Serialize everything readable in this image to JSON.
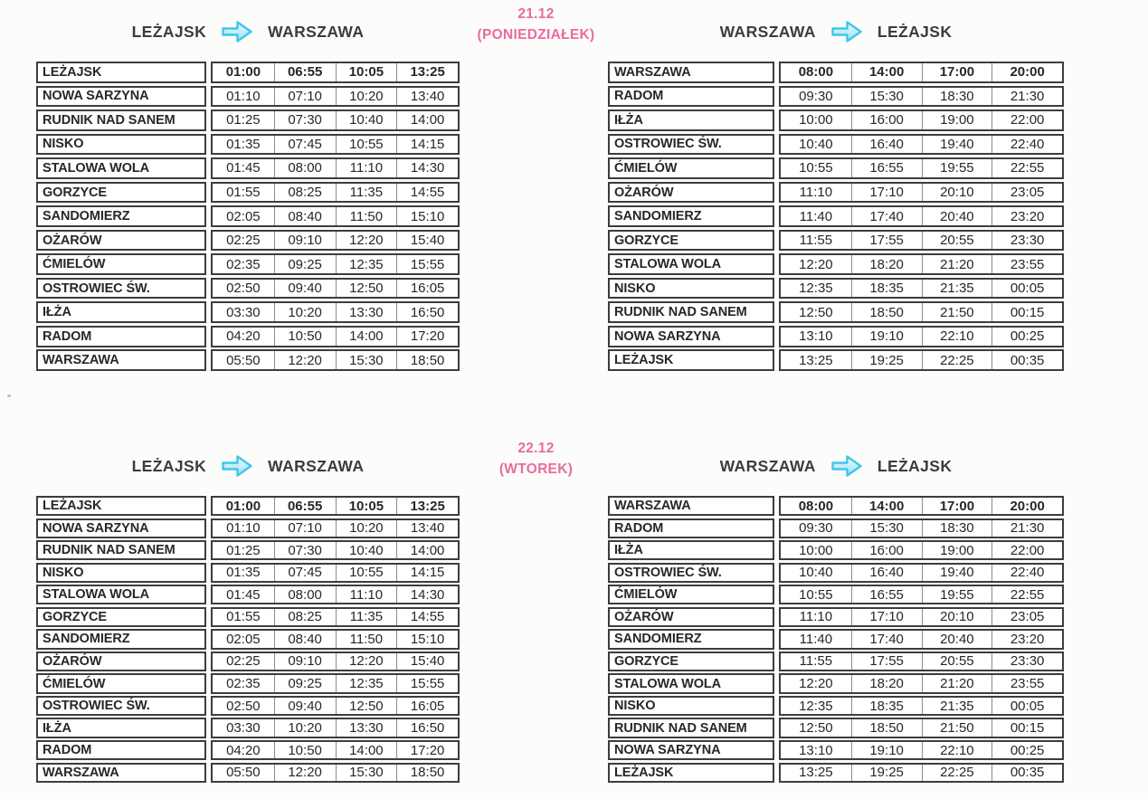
{
  "colors": {
    "header_text": "#3c3c3c",
    "date_pink": "#ea6b9f",
    "table_border": "#3d3d3d",
    "cell_text": "#272727",
    "separator": "#8d8d8d",
    "page_bg": "#fcfcfb",
    "arrow_stroke": "#3fc6ec",
    "arrow_fill": "#c9f0fb"
  },
  "icons": {
    "route_arrow": "arrow-right-icon"
  },
  "sections": [
    {
      "date": "21.12",
      "day_label": "(PONIEDZIAŁEK)",
      "left_table": {
        "origin": "LEŻAJSK",
        "destination": "WARSZAWA",
        "rows": [
          {
            "station": "LEŻAJSK",
            "times": [
              "01:00",
              "06:55",
              "10:05",
              "13:25"
            ]
          },
          {
            "station": "NOWA SARZYNA",
            "times": [
              "01:10",
              "07:10",
              "10:20",
              "13:40"
            ]
          },
          {
            "station": "RUDNIK NAD SANEM",
            "times": [
              "01:25",
              "07:30",
              "10:40",
              "14:00"
            ]
          },
          {
            "station": "NISKO",
            "times": [
              "01:35",
              "07:45",
              "10:55",
              "14:15"
            ]
          },
          {
            "station": "STALOWA WOLA",
            "times": [
              "01:45",
              "08:00",
              "11:10",
              "14:30"
            ]
          },
          {
            "station": "GORZYCE",
            "times": [
              "01:55",
              "08:25",
              "11:35",
              "14:55"
            ]
          },
          {
            "station": "SANDOMIERZ",
            "times": [
              "02:05",
              "08:40",
              "11:50",
              "15:10"
            ]
          },
          {
            "station": "OŻARÓW",
            "times": [
              "02:25",
              "09:10",
              "12:20",
              "15:40"
            ]
          },
          {
            "station": "ĆMIELÓW",
            "times": [
              "02:35",
              "09:25",
              "12:35",
              "15:55"
            ]
          },
          {
            "station": "OSTROWIEC ŚW.",
            "times": [
              "02:50",
              "09:40",
              "12:50",
              "16:05"
            ]
          },
          {
            "station": "IŁŻA",
            "times": [
              "03:30",
              "10:20",
              "13:30",
              "16:50"
            ]
          },
          {
            "station": "RADOM",
            "times": [
              "04:20",
              "10:50",
              "14:00",
              "17:20"
            ]
          },
          {
            "station": "WARSZAWA",
            "times": [
              "05:50",
              "12:20",
              "15:30",
              "18:50"
            ]
          }
        ]
      },
      "right_table": {
        "origin": "WARSZAWA",
        "destination": "LEŻAJSK",
        "rows": [
          {
            "station": "WARSZAWA",
            "times": [
              "08:00",
              "14:00",
              "17:00",
              "20:00"
            ]
          },
          {
            "station": "RADOM",
            "times": [
              "09:30",
              "15:30",
              "18:30",
              "21:30"
            ]
          },
          {
            "station": "IŁŻA",
            "times": [
              "10:00",
              "16:00",
              "19:00",
              "22:00"
            ]
          },
          {
            "station": "OSTROWIEC ŚW.",
            "times": [
              "10:40",
              "16:40",
              "19:40",
              "22:40"
            ]
          },
          {
            "station": "ĆMIELÓW",
            "times": [
              "10:55",
              "16:55",
              "19:55",
              "22:55"
            ]
          },
          {
            "station": "OŻARÓW",
            "times": [
              "11:10",
              "17:10",
              "20:10",
              "23:05"
            ]
          },
          {
            "station": "SANDOMIERZ",
            "times": [
              "11:40",
              "17:40",
              "20:40",
              "23:20"
            ]
          },
          {
            "station": "GORZYCE",
            "times": [
              "11:55",
              "17:55",
              "20:55",
              "23:30"
            ]
          },
          {
            "station": "STALOWA WOLA",
            "times": [
              "12:20",
              "18:20",
              "21:20",
              "23:55"
            ]
          },
          {
            "station": "NISKO",
            "times": [
              "12:35",
              "18:35",
              "21:35",
              "00:05"
            ]
          },
          {
            "station": "RUDNIK NAD SANEM",
            "times": [
              "12:50",
              "18:50",
              "21:50",
              "00:15"
            ]
          },
          {
            "station": "NOWA SARZYNA",
            "times": [
              "13:10",
              "19:10",
              "22:10",
              "00:25"
            ]
          },
          {
            "station": "LEŻAJSK",
            "times": [
              "13:25",
              "19:25",
              "22:25",
              "00:35"
            ]
          }
        ]
      }
    },
    {
      "date": "22.12",
      "day_label": "(WTOREK)",
      "left_table": {
        "origin": "LEŻAJSK",
        "destination": "WARSZAWA",
        "rows": [
          {
            "station": "LEŻAJSK",
            "times": [
              "01:00",
              "06:55",
              "10:05",
              "13:25"
            ]
          },
          {
            "station": "NOWA SARZYNA",
            "times": [
              "01:10",
              "07:10",
              "10:20",
              "13:40"
            ]
          },
          {
            "station": "RUDNIK NAD SANEM",
            "times": [
              "01:25",
              "07:30",
              "10:40",
              "14:00"
            ]
          },
          {
            "station": "NISKO",
            "times": [
              "01:35",
              "07:45",
              "10:55",
              "14:15"
            ]
          },
          {
            "station": "STALOWA WOLA",
            "times": [
              "01:45",
              "08:00",
              "11:10",
              "14:30"
            ]
          },
          {
            "station": "GORZYCE",
            "times": [
              "01:55",
              "08:25",
              "11:35",
              "14:55"
            ]
          },
          {
            "station": "SANDOMIERZ",
            "times": [
              "02:05",
              "08:40",
              "11:50",
              "15:10"
            ]
          },
          {
            "station": "OŻARÓW",
            "times": [
              "02:25",
              "09:10",
              "12:20",
              "15:40"
            ]
          },
          {
            "station": "ĆMIELÓW",
            "times": [
              "02:35",
              "09:25",
              "12:35",
              "15:55"
            ]
          },
          {
            "station": "OSTROWIEC ŚW.",
            "times": [
              "02:50",
              "09:40",
              "12:50",
              "16:05"
            ]
          },
          {
            "station": "IŁŻA",
            "times": [
              "03:30",
              "10:20",
              "13:30",
              "16:50"
            ]
          },
          {
            "station": "RADOM",
            "times": [
              "04:20",
              "10:50",
              "14:00",
              "17:20"
            ]
          },
          {
            "station": "WARSZAWA",
            "times": [
              "05:50",
              "12:20",
              "15:30",
              "18:50"
            ]
          }
        ]
      },
      "right_table": {
        "origin": "WARSZAWA",
        "destination": "LEŻAJSK",
        "rows": [
          {
            "station": "WARSZAWA",
            "times": [
              "08:00",
              "14:00",
              "17:00",
              "20:00"
            ]
          },
          {
            "station": "RADOM",
            "times": [
              "09:30",
              "15:30",
              "18:30",
              "21:30"
            ]
          },
          {
            "station": "IŁŻA",
            "times": [
              "10:00",
              "16:00",
              "19:00",
              "22:00"
            ]
          },
          {
            "station": "OSTROWIEC ŚW.",
            "times": [
              "10:40",
              "16:40",
              "19:40",
              "22:40"
            ]
          },
          {
            "station": "ĆMIELÓW",
            "times": [
              "10:55",
              "16:55",
              "19:55",
              "22:55"
            ]
          },
          {
            "station": "OŻARÓW",
            "times": [
              "11:10",
              "17:10",
              "20:10",
              "23:05"
            ]
          },
          {
            "station": "SANDOMIERZ",
            "times": [
              "11:40",
              "17:40",
              "20:40",
              "23:20"
            ]
          },
          {
            "station": "GORZYCE",
            "times": [
              "11:55",
              "17:55",
              "20:55",
              "23:30"
            ]
          },
          {
            "station": "STALOWA WOLA",
            "times": [
              "12:20",
              "18:20",
              "21:20",
              "23:55"
            ]
          },
          {
            "station": "NISKO",
            "times": [
              "12:35",
              "18:35",
              "21:35",
              "00:05"
            ]
          },
          {
            "station": "RUDNIK NAD SANEM",
            "times": [
              "12:50",
              "18:50",
              "21:50",
              "00:15"
            ]
          },
          {
            "station": "NOWA SARZYNA",
            "times": [
              "13:10",
              "19:10",
              "22:10",
              "00:25"
            ]
          },
          {
            "station": "LEŻAJSK",
            "times": [
              "13:25",
              "19:25",
              "22:25",
              "00:35"
            ]
          }
        ]
      }
    }
  ]
}
